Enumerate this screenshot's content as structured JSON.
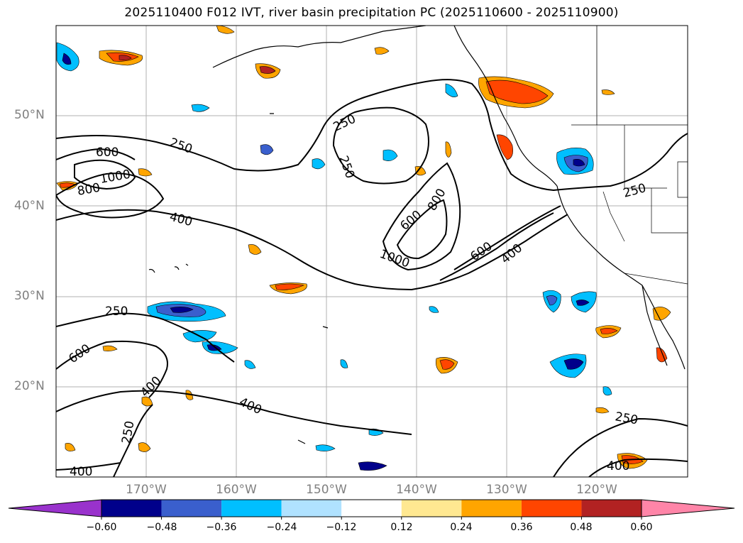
{
  "title": "2025110400 F012 IVT, river basin precipitation PC (2025110600 - 2025110900)",
  "lat_labels": [
    {
      "text": "50°N",
      "lat": 50
    },
    {
      "text": "40°N",
      "lat": 40
    },
    {
      "text": "30°N",
      "lat": 30
    },
    {
      "text": "20°N",
      "lat": 20
    }
  ],
  "lon_labels": [
    {
      "text": "170°W",
      "lon": -170
    },
    {
      "text": "160°W",
      "lon": -160
    },
    {
      "text": "150°W",
      "lon": -150
    },
    {
      "text": "140°W",
      "lon": -140
    },
    {
      "text": "130°W",
      "lon": -130
    },
    {
      "text": "120°W",
      "lon": -120
    }
  ],
  "colorbar": {
    "tick_labels": [
      "−0.60",
      "−0.48",
      "−0.36",
      "−0.24",
      "−0.12",
      "0.12",
      "0.24",
      "0.36",
      "0.48",
      "0.60"
    ],
    "levels": [
      -0.6,
      -0.48,
      -0.36,
      -0.24,
      -0.12,
      0.12,
      0.24,
      0.36,
      0.48,
      0.6
    ],
    "colors": [
      "#9932cc",
      "#00008b",
      "#3a5fcd",
      "#00bfff",
      "#b0e2ff",
      "#ffffff",
      "#ffe891",
      "#ffa500",
      "#ff4500",
      "#b22222",
      "#ff85a8"
    ],
    "extend": "both"
  },
  "map": {
    "lon_range": [
      -180,
      -110
    ],
    "lat_range": [
      10,
      60
    ],
    "gridlines": true,
    "ivt_contour_labels": [
      "250",
      "250",
      "250",
      "250",
      "250",
      "250",
      "250",
      "400",
      "400",
      "400",
      "400",
      "400",
      "400",
      "600",
      "600",
      "600",
      "600",
      "800",
      "800",
      "1000",
      "1000"
    ]
  }
}
